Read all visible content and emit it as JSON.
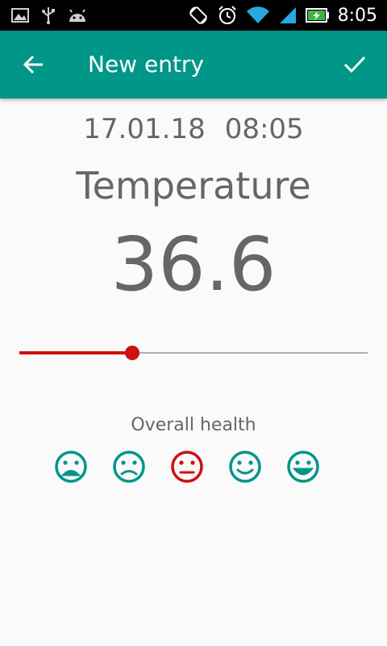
{
  "status_bar": {
    "time": "8:05",
    "left_icons": [
      "image-icon",
      "usb-icon",
      "android-icon"
    ],
    "right_icons": [
      "rotate-icon",
      "alarm-icon",
      "wifi-icon",
      "signal-icon",
      "battery-charging-icon"
    ]
  },
  "app_bar": {
    "title": "New entry",
    "back_icon": "arrow-back-icon",
    "confirm_icon": "check-icon",
    "color": "#009688"
  },
  "entry": {
    "date": "17.01.18",
    "time": "08:05",
    "measure_title": "Temperature",
    "value": "36.6",
    "slider_fraction": 0.325,
    "accent_color": "#cc1111"
  },
  "health": {
    "label": "Overall health",
    "options": [
      {
        "name": "very-sad-face-icon",
        "selected": false
      },
      {
        "name": "sad-face-icon",
        "selected": false
      },
      {
        "name": "neutral-face-icon",
        "selected": true
      },
      {
        "name": "happy-face-icon",
        "selected": false
      },
      {
        "name": "very-happy-face-icon",
        "selected": false
      }
    ],
    "default_color": "#009688",
    "selected_color": "#cc1111"
  }
}
